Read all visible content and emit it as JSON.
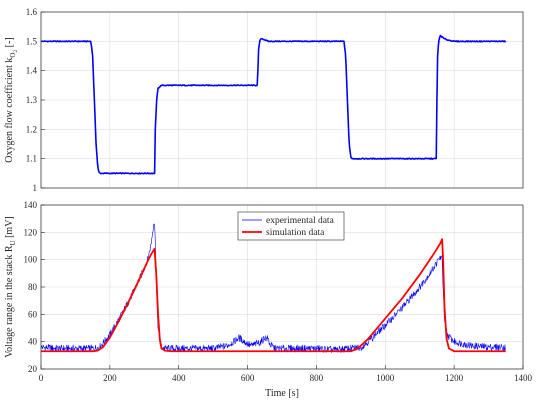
{
  "chart_data": [
    {
      "type": "line",
      "ylabel": "Oxygen flow coefficient k",
      "ylabel_sub": "O",
      "ylabel_subsub": "2",
      "ylabel_unit": " [-]",
      "xlim": [
        0,
        1400
      ],
      "ylim": [
        1,
        1.6
      ],
      "yticks": [
        1,
        1.1,
        1.2,
        1.3,
        1.4,
        1.5,
        1.6
      ],
      "ytick_labels": [
        "1",
        "1.1",
        "1.2",
        "1.3",
        "1.4",
        "1.5",
        "1.6"
      ],
      "grid": true,
      "color": "#0000ff",
      "series": [
        {
          "x": [
            0,
            145,
            150,
            155,
            160,
            165,
            168,
            172,
            200,
            250,
            300,
            320,
            330,
            332,
            336,
            340,
            345,
            350,
            360,
            380,
            400,
            450,
            500,
            550,
            600,
            620,
            628,
            630,
            632,
            635,
            640,
            650,
            660,
            700,
            750,
            800,
            850,
            880,
            885,
            890,
            895,
            900,
            905,
            950,
            1000,
            1050,
            1100,
            1140,
            1148,
            1150,
            1152,
            1155,
            1160,
            1170,
            1180,
            1200,
            1250,
            1300,
            1350
          ],
          "y": [
            1.5,
            1.5,
            1.45,
            1.3,
            1.15,
            1.07,
            1.055,
            1.05,
            1.05,
            1.05,
            1.05,
            1.05,
            1.05,
            1.2,
            1.3,
            1.34,
            1.345,
            1.35,
            1.35,
            1.35,
            1.35,
            1.35,
            1.35,
            1.35,
            1.35,
            1.35,
            1.35,
            1.4,
            1.47,
            1.5,
            1.51,
            1.505,
            1.5,
            1.5,
            1.5,
            1.5,
            1.5,
            1.5,
            1.45,
            1.3,
            1.15,
            1.105,
            1.1,
            1.1,
            1.1,
            1.1,
            1.1,
            1.1,
            1.1,
            1.3,
            1.45,
            1.5,
            1.52,
            1.51,
            1.505,
            1.5,
            1.5,
            1.5,
            1.5
          ]
        }
      ]
    },
    {
      "type": "line",
      "ylabel": "Voltage range in the stack R",
      "ylabel_sub": "U",
      "ylabel_unit": " [mV]",
      "xlabel": "Time [s]",
      "xlim": [
        0,
        1400
      ],
      "ylim": [
        20,
        140
      ],
      "xticks": [
        0,
        200,
        400,
        600,
        800,
        1000,
        1200,
        1400
      ],
      "xtick_labels": [
        "0",
        "200",
        "400",
        "600",
        "800",
        "1000",
        "1200",
        "1400"
      ],
      "yticks": [
        20,
        40,
        60,
        80,
        100,
        120,
        140
      ],
      "ytick_labels": [
        "20",
        "40",
        "60",
        "80",
        "100",
        "120",
        "140"
      ],
      "grid": true,
      "legend_position": "top-center",
      "series": [
        {
          "name": "experimental data",
          "color": "#0000ff",
          "x": [
            0,
            50,
            100,
            150,
            170,
            200,
            230,
            260,
            290,
            310,
            320,
            325,
            328,
            330,
            333,
            336,
            340,
            345,
            350,
            360,
            400,
            450,
            500,
            540,
            560,
            575,
            590,
            610,
            640,
            650,
            660,
            665,
            680,
            700,
            750,
            800,
            850,
            900,
            930,
            950,
            1000,
            1050,
            1100,
            1130,
            1150,
            1160,
            1165,
            1168,
            1172,
            1180,
            1200,
            1250,
            1300,
            1350
          ],
          "y": [
            36,
            35,
            35,
            35,
            36,
            45,
            58,
            72,
            88,
            100,
            112,
            122,
            128,
            126,
            105,
            75,
            50,
            40,
            36,
            35,
            35,
            35,
            35,
            37,
            40,
            43,
            40,
            37,
            40,
            43,
            42,
            38,
            35,
            35,
            35,
            35,
            34,
            35,
            36,
            40,
            52,
            65,
            80,
            90,
            98,
            102,
            100,
            80,
            55,
            45,
            40,
            37,
            36,
            36
          ]
        },
        {
          "name": "simulation data",
          "color": "#ff0000",
          "x": [
            0,
            150,
            165,
            180,
            200,
            230,
            260,
            290,
            310,
            320,
            330,
            335,
            340,
            345,
            350,
            360,
            380,
            400,
            500,
            600,
            700,
            800,
            900,
            920,
            950,
            1000,
            1050,
            1100,
            1140,
            1160,
            1165,
            1168,
            1172,
            1178,
            1185,
            1200,
            1300,
            1350
          ],
          "y": [
            33,
            33,
            33.5,
            36,
            43,
            57,
            72,
            88,
            99,
            104,
            108,
            88,
            60,
            42,
            35,
            33.5,
            33,
            33,
            33,
            33,
            33,
            33,
            33,
            35,
            42,
            57,
            72,
            89,
            104,
            112,
            115,
            100,
            65,
            42,
            35,
            33,
            33,
            33
          ]
        }
      ]
    }
  ]
}
